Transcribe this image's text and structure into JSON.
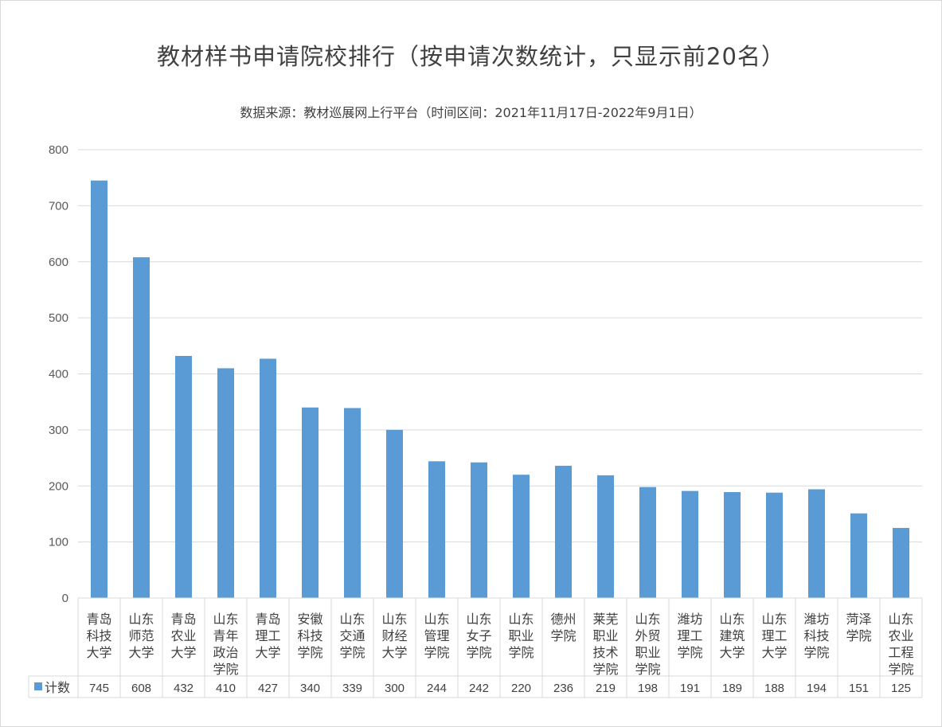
{
  "chart_data": {
    "type": "bar",
    "title": "教材样书申请院校排行（按申请次数统计，只显示前20名）",
    "subtitle": "数据来源：教材巡展网上行平台（时间区间：2021年11月17日-2022年9月1日）",
    "categories": [
      [
        "青岛",
        "科技",
        "大学"
      ],
      [
        "山东",
        "师范",
        "大学"
      ],
      [
        "青岛",
        "农业",
        "大学"
      ],
      [
        "山东",
        "青年",
        "政治",
        "学院"
      ],
      [
        "青岛",
        "理工",
        "大学"
      ],
      [
        "安徽",
        "科技",
        "学院"
      ],
      [
        "山东",
        "交通",
        "学院"
      ],
      [
        "山东",
        "财经",
        "大学"
      ],
      [
        "山东",
        "管理",
        "学院"
      ],
      [
        "山东",
        "女子",
        "学院"
      ],
      [
        "山东",
        "职业",
        "学院"
      ],
      [
        "德州",
        "学院"
      ],
      [
        "莱芜",
        "职业",
        "技术",
        "学院"
      ],
      [
        "山东",
        "外贸",
        "职业",
        "学院"
      ],
      [
        "潍坊",
        "理工",
        "学院"
      ],
      [
        "山东",
        "建筑",
        "大学"
      ],
      [
        "山东",
        "理工",
        "大学"
      ],
      [
        "潍坊",
        "科技",
        "学院"
      ],
      [
        "菏泽",
        "学院"
      ],
      [
        "山东",
        "农业",
        "工程",
        "学院"
      ]
    ],
    "series": [
      {
        "name": "计数",
        "color": "#5b9bd5",
        "values": [
          745,
          608,
          432,
          410,
          427,
          340,
          339,
          300,
          244,
          242,
          220,
          236,
          219,
          198,
          191,
          189,
          188,
          194,
          151,
          125
        ]
      }
    ],
    "ylim": [
      0,
      800
    ],
    "yticks": [
      0,
      100,
      200,
      300,
      400,
      500,
      600,
      700,
      800
    ],
    "grid": true,
    "legend": "data-table-left"
  }
}
